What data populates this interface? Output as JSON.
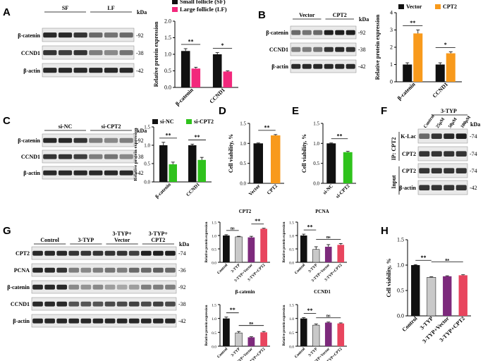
{
  "panels": {
    "A": {
      "label": "A",
      "blot": {
        "groups": [
          "SF",
          "LF"
        ],
        "rows": [
          "β-catenin",
          "CCND1",
          "β-actin"
        ],
        "kda": [
          "92",
          "38",
          "42"
        ],
        "kda_label": "kDa"
      }
    },
    "B": {
      "label": "B",
      "blot": {
        "groups": [
          "Vector",
          "CPT2"
        ],
        "rows": [
          "β-catenin",
          "CCND1",
          "β-actin"
        ],
        "kda": [
          "92",
          "38",
          "42"
        ],
        "kda_label": "kDa"
      }
    },
    "C": {
      "label": "C",
      "blot": {
        "groups": [
          "si-NC",
          "si-CPT2"
        ],
        "rows": [
          "β-catenin",
          "CCND1",
          "β-actin"
        ],
        "kda": [
          "92",
          "38",
          "42"
        ],
        "kda_label": "kDa"
      }
    },
    "D": {
      "label": "D"
    },
    "E": {
      "label": "E"
    },
    "F": {
      "label": "F",
      "blot": {
        "treatment": "3-TYP",
        "lanes": [
          "Control",
          "25μM",
          "50μM",
          "100μM"
        ],
        "rows": [
          "K-Lac",
          "CPT2",
          "CPT2",
          "β-actin"
        ],
        "kda": [
          "74",
          "74",
          "74",
          "42"
        ],
        "kda_label": "kDa",
        "side_labels": [
          "IP: CPT2",
          "Input"
        ]
      }
    },
    "G": {
      "label": "G",
      "blot": {
        "groups": [
          "Control",
          "3-TYP",
          "3-TYP+\nVector",
          "3-TYP+\nCPT2"
        ],
        "rows": [
          "CPT2",
          "PCNA",
          "β-catenin",
          "CCND1",
          "β-actin"
        ],
        "kda": [
          "74",
          "36",
          "92",
          "38",
          "42"
        ],
        "kda_label": "kDa"
      }
    },
    "H": {
      "label": "H"
    }
  },
  "colors": {
    "black": "#111111",
    "pink": "#f2287c",
    "orange": "#f89a1c",
    "green": "#2fc21c",
    "grey": "#c9c9c9",
    "purple": "#7d2a7c",
    "red": "#e8455e"
  },
  "chart_data": [
    {
      "id": "A",
      "type": "bar",
      "categories": [
        "β-catenin",
        "CCND1"
      ],
      "series": [
        {
          "name": "Small follicle (SF)",
          "color": "black",
          "values": [
            1.1,
            1.0
          ],
          "errors": [
            0.07,
            0.05
          ]
        },
        {
          "name": "Large follicle (LF)",
          "color": "pink",
          "values": [
            0.57,
            0.48
          ],
          "errors": [
            0.04,
            0.02
          ]
        }
      ],
      "ylabel": "Relative protein expression",
      "ylim": [
        0,
        2.0
      ],
      "yticks": [
        "0.0",
        "0.5",
        "1.0",
        "1.5",
        "2.0"
      ],
      "sig": [
        "**",
        "*"
      ],
      "legend": "top"
    },
    {
      "id": "B",
      "type": "bar",
      "categories": [
        "β-catenin",
        "CCND1"
      ],
      "series": [
        {
          "name": "Vector",
          "color": "black",
          "values": [
            1.0,
            1.0
          ],
          "errors": [
            0.1,
            0.1
          ]
        },
        {
          "name": "CPT2",
          "color": "orange",
          "values": [
            2.8,
            1.65
          ],
          "errors": [
            0.2,
            0.08
          ]
        }
      ],
      "ylabel": "Relative protein expression",
      "ylim": [
        0,
        4
      ],
      "yticks": [
        "0",
        "1",
        "2",
        "3",
        "4"
      ],
      "sig": [
        "**",
        "*"
      ],
      "legend": "top"
    },
    {
      "id": "C",
      "type": "bar",
      "categories": [
        "β-catenin",
        "CCND1"
      ],
      "series": [
        {
          "name": "si-NC",
          "color": "black",
          "values": [
            1.0,
            1.0
          ],
          "errors": [
            0.08,
            0.03
          ]
        },
        {
          "name": "si-CPT2",
          "color": "green",
          "values": [
            0.48,
            0.6
          ],
          "errors": [
            0.06,
            0.07
          ]
        }
      ],
      "ylabel": "Relative protein expression",
      "ylim": [
        0,
        1.5
      ],
      "yticks": [
        "0.0",
        "0.5",
        "1.0",
        "1.5"
      ],
      "sig": [
        "**",
        "**"
      ],
      "legend": "top"
    },
    {
      "id": "D",
      "type": "bar",
      "categories": [
        "Vector",
        "CPT2"
      ],
      "series": [
        {
          "name": "Cell viability",
          "colors": [
            "black",
            "orange"
          ],
          "values": [
            1.0,
            1.2
          ],
          "errors": [
            0.01,
            0.02
          ]
        }
      ],
      "ylabel": "Cell viability, %",
      "ylim": [
        0,
        1.5
      ],
      "yticks": [
        "0.0",
        "0.5",
        "1.0",
        "1.5"
      ],
      "sig_pairs": [
        {
          "a": 0,
          "b": 1,
          "text": "**"
        }
      ]
    },
    {
      "id": "E",
      "type": "bar",
      "categories": [
        "si-NC",
        "si-CPT2"
      ],
      "series": [
        {
          "name": "Cell viability",
          "colors": [
            "black",
            "green"
          ],
          "values": [
            1.0,
            0.78
          ],
          "errors": [
            0.01,
            0.02
          ]
        }
      ],
      "ylabel": "Cell viability, %",
      "ylim": [
        0,
        1.5
      ],
      "yticks": [
        "0.0",
        "0.5",
        "1.0",
        "1.5"
      ],
      "sig_pairs": [
        {
          "a": 0,
          "b": 1,
          "text": "**"
        }
      ]
    },
    {
      "id": "G1",
      "type": "bar",
      "title": "CPT2",
      "categories": [
        "Control",
        "3-TYP",
        "3-TYP+Vector",
        "3-TYP+CPT2"
      ],
      "series": [
        {
          "name": "CPT2",
          "colors": [
            "black",
            "grey",
            "purple",
            "red"
          ],
          "values": [
            1.0,
            0.95,
            0.93,
            1.25
          ],
          "errors": [
            0.03,
            0.02,
            0.04,
            0.02
          ]
        }
      ],
      "ylabel": "Relative protein expression",
      "ylim": [
        0,
        1.5
      ],
      "yticks": [
        "0.0",
        "0.5",
        "1.0",
        "1.5"
      ],
      "sig_pairs": [
        {
          "a": 0,
          "b": 1,
          "text": "ns"
        },
        {
          "a": 2,
          "b": 3,
          "text": "**"
        }
      ]
    },
    {
      "id": "G2",
      "type": "bar",
      "title": "PCNA",
      "categories": [
        "Control",
        "3-TYP",
        "3-TYP+Vector",
        "3-TYP+CPT2"
      ],
      "series": [
        {
          "name": "PCNA",
          "colors": [
            "black",
            "grey",
            "purple",
            "red"
          ],
          "values": [
            1.0,
            0.48,
            0.58,
            0.65
          ],
          "errors": [
            0.05,
            0.1,
            0.08,
            0.05
          ]
        }
      ],
      "ylabel": "Relative protein expression",
      "ylim": [
        0,
        1.5
      ],
      "yticks": [
        "0.0",
        "0.5",
        "1.0",
        "1.5"
      ],
      "sig_pairs": [
        {
          "a": 0,
          "b": 1,
          "text": "**"
        },
        {
          "a": 1,
          "b": 3,
          "text": "ns"
        }
      ]
    },
    {
      "id": "G3",
      "type": "bar",
      "title": "β-catenin",
      "categories": [
        "Control",
        "3-TYP",
        "3-TYP+Vector",
        "3-TYP+CPT2"
      ],
      "series": [
        {
          "name": "β-catenin",
          "colors": [
            "black",
            "grey",
            "purple",
            "red"
          ],
          "values": [
            1.0,
            0.48,
            0.32,
            0.5
          ],
          "errors": [
            0.05,
            0.05,
            0.02,
            0.03
          ]
        }
      ],
      "ylabel": "Relative protein expression",
      "ylim": [
        0,
        1.5
      ],
      "yticks": [
        "0.0",
        "0.5",
        "1.0",
        "1.5"
      ],
      "sig_pairs": [
        {
          "a": 0,
          "b": 1,
          "text": "**"
        },
        {
          "a": 1,
          "b": 3,
          "text": "ns"
        }
      ]
    },
    {
      "id": "G4",
      "type": "bar",
      "title": "CCND1",
      "categories": [
        "Control",
        "3-TYP",
        "3-TYP+Vector",
        "3-TYP+CPT2"
      ],
      "series": [
        {
          "name": "CCND1",
          "colors": [
            "black",
            "grey",
            "purple",
            "red"
          ],
          "values": [
            1.0,
            0.76,
            0.85,
            0.82
          ],
          "errors": [
            0.03,
            0.04,
            0.02,
            0.02
          ]
        }
      ],
      "ylabel": "Relative protein expression",
      "ylim": [
        0,
        1.5
      ],
      "yticks": [
        "0.0",
        "0.5",
        "1.0",
        "1.5"
      ],
      "sig_pairs": [
        {
          "a": 0,
          "b": 1,
          "text": "**"
        },
        {
          "a": 1,
          "b": 3,
          "text": "ns"
        }
      ]
    },
    {
      "id": "H",
      "type": "bar",
      "categories": [
        "Control",
        "3-TYP",
        "3-TYP+Vector",
        "3-TYP+CPT2"
      ],
      "series": [
        {
          "name": "Cell viability",
          "colors": [
            "black",
            "grey",
            "purple",
            "red"
          ],
          "values": [
            1.0,
            0.76,
            0.78,
            0.8
          ],
          "errors": [
            0.01,
            0.01,
            0.01,
            0.01
          ]
        }
      ],
      "ylabel": "Cell viability, %",
      "ylim": [
        0,
        1.5
      ],
      "yticks": [
        "0.0",
        "0.5",
        "1.0",
        "1.5"
      ],
      "sig_pairs": [
        {
          "a": 0,
          "b": 1,
          "text": "**"
        },
        {
          "a": 1,
          "b": 3,
          "text": "ns"
        }
      ]
    }
  ]
}
